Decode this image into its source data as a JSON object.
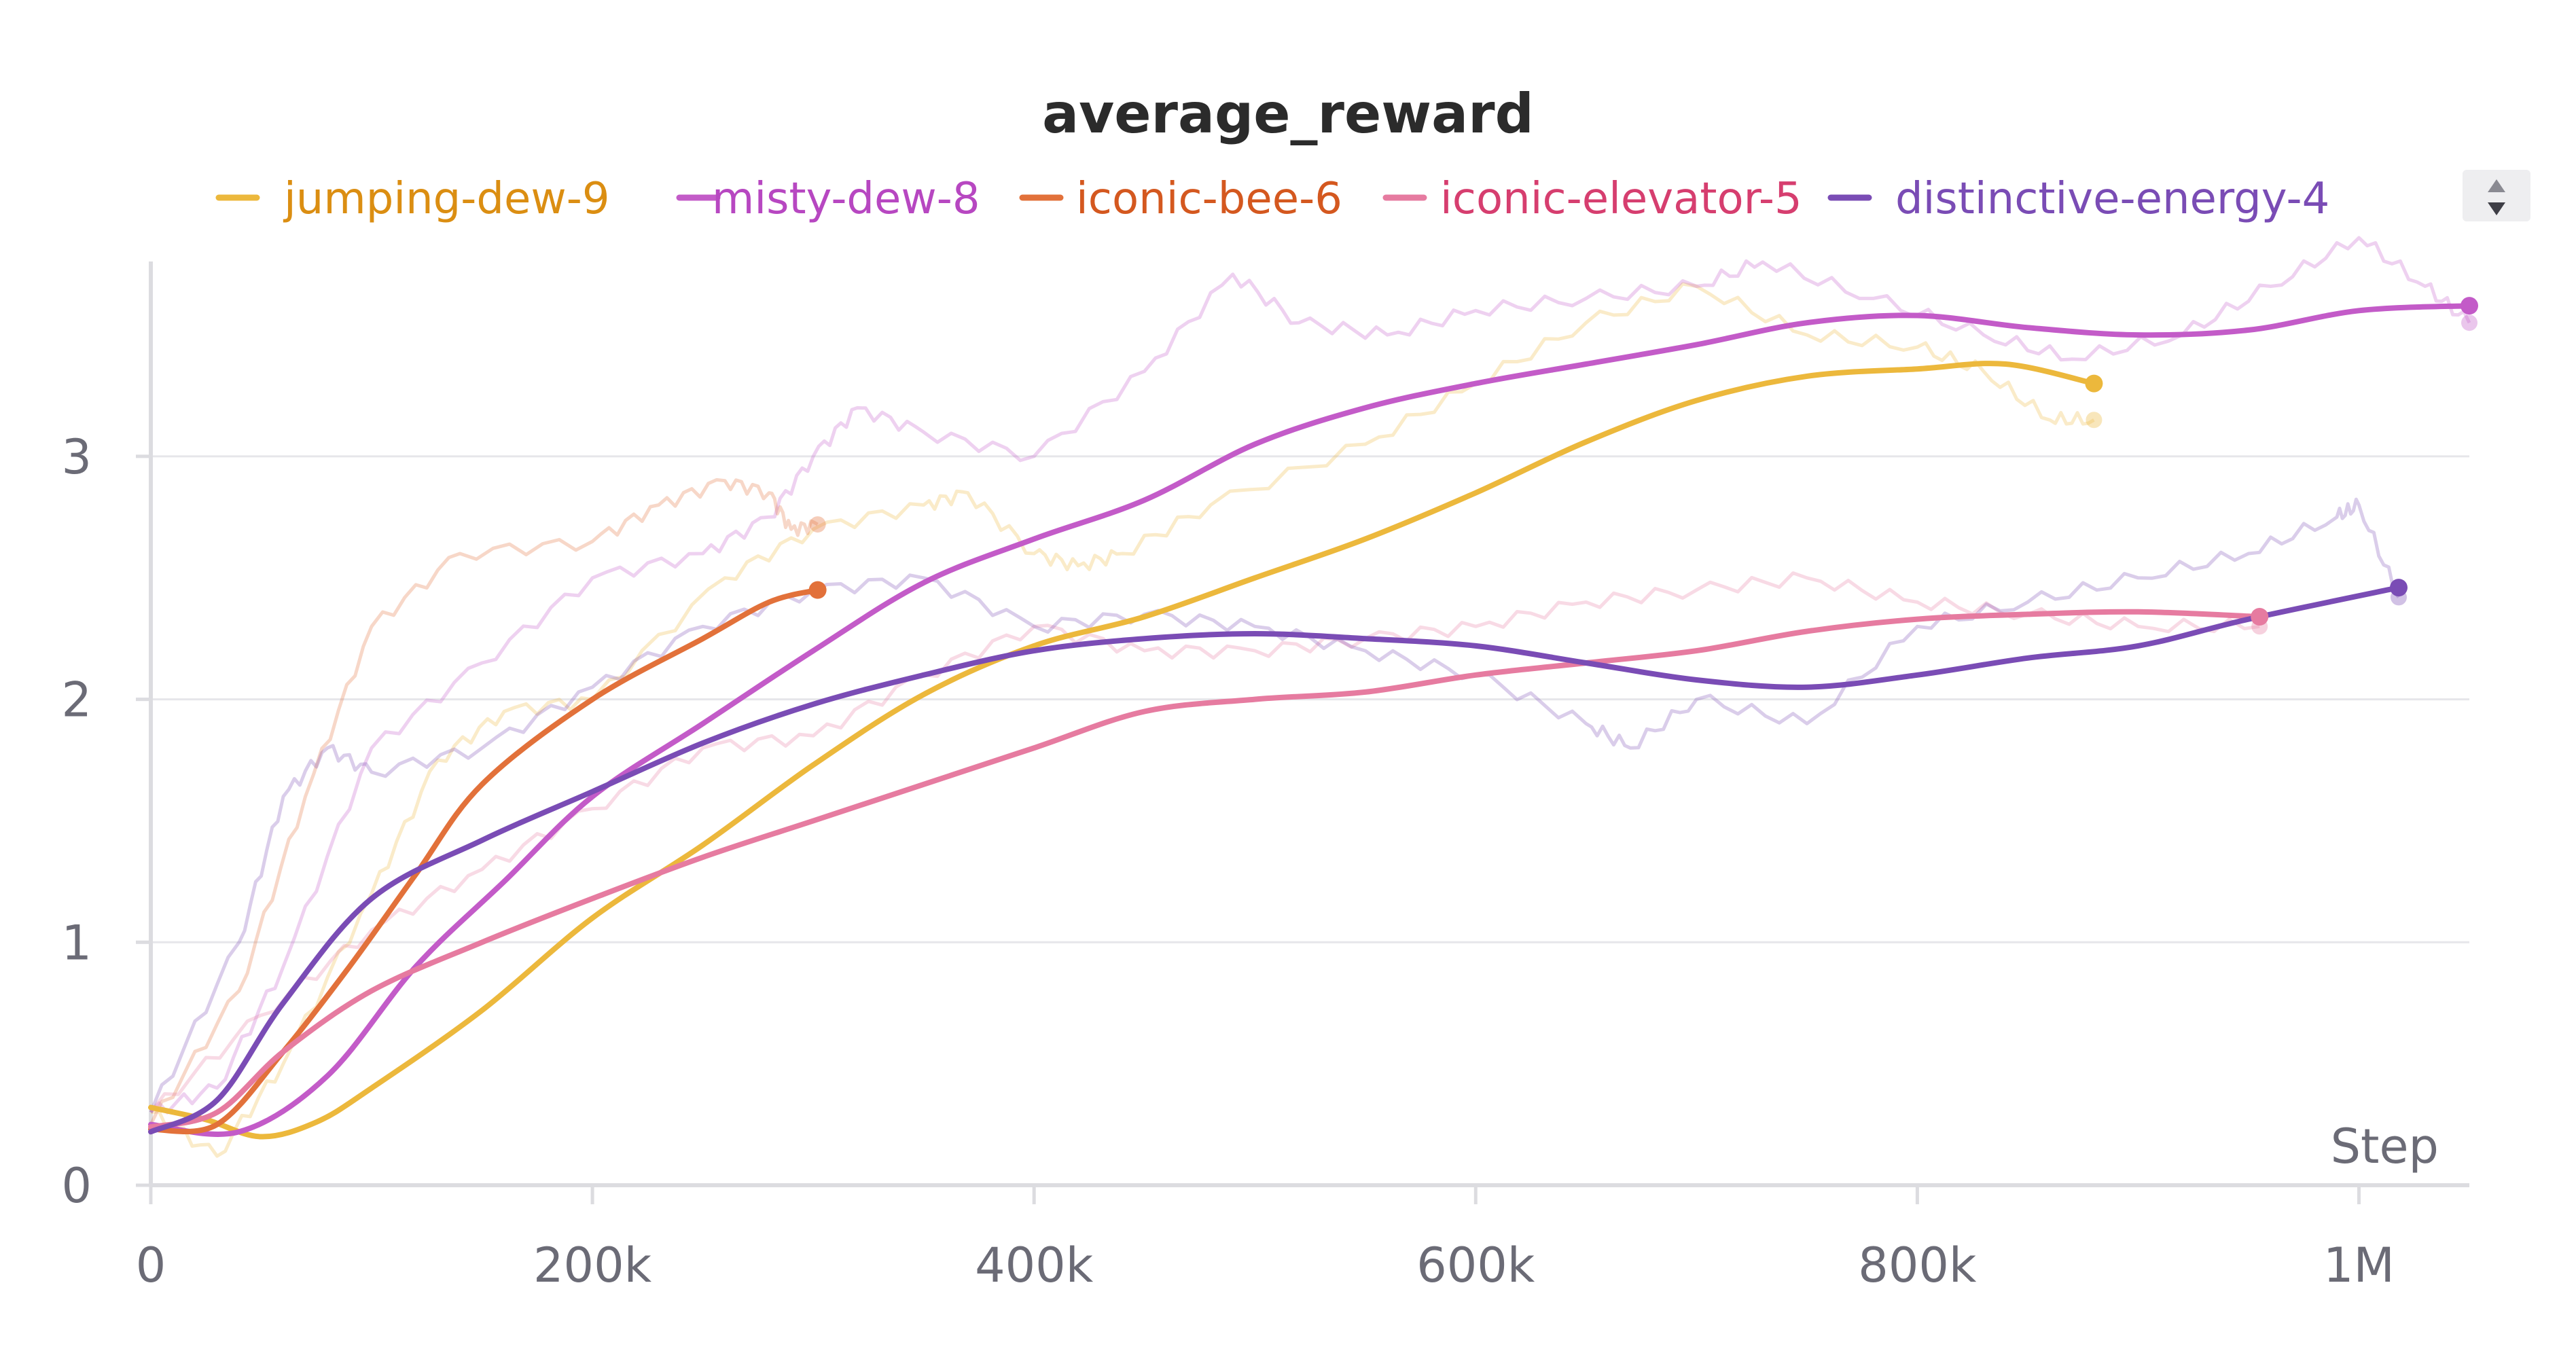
{
  "chart_data": {
    "type": "line",
    "title": "average_reward",
    "xlabel": "Step",
    "ylabel": "",
    "xlim": [
      0,
      1050000
    ],
    "ylim": [
      0,
      3.9
    ],
    "x_ticks": [
      0,
      200000,
      400000,
      600000,
      800000,
      1000000
    ],
    "x_tick_labels": [
      "0",
      "200k",
      "400k",
      "600k",
      "800k",
      "1M"
    ],
    "y_ticks": [
      0,
      1,
      2,
      3
    ],
    "y_tick_labels": [
      "0",
      "1",
      "2",
      "3"
    ],
    "grid": "horizontal",
    "legend_position": "top",
    "series": [
      {
        "name": "jumping-dew-9",
        "color": "#ECB83C",
        "label_color": "#DB8E12",
        "smoothed": [
          [
            0,
            0.32
          ],
          [
            25000,
            0.27
          ],
          [
            50000,
            0.2
          ],
          [
            75000,
            0.26
          ],
          [
            100000,
            0.4
          ],
          [
            150000,
            0.72
          ],
          [
            200000,
            1.1
          ],
          [
            250000,
            1.4
          ],
          [
            300000,
            1.73
          ],
          [
            350000,
            2.02
          ],
          [
            400000,
            2.22
          ],
          [
            450000,
            2.34
          ],
          [
            500000,
            2.5
          ],
          [
            550000,
            2.66
          ],
          [
            600000,
            2.85
          ],
          [
            650000,
            3.06
          ],
          [
            700000,
            3.23
          ],
          [
            750000,
            3.33
          ],
          [
            800000,
            3.36
          ],
          [
            840000,
            3.38
          ],
          [
            880000,
            3.3
          ]
        ],
        "raw": [
          [
            0,
            0.3
          ],
          [
            30000,
            0.12
          ],
          [
            60000,
            0.5
          ],
          [
            100000,
            1.2
          ],
          [
            130000,
            1.75
          ],
          [
            160000,
            1.95
          ],
          [
            200000,
            2.0
          ],
          [
            260000,
            2.5
          ],
          [
            300000,
            2.7
          ],
          [
            350000,
            2.8
          ],
          [
            370000,
            2.85
          ],
          [
            400000,
            2.6
          ],
          [
            420000,
            2.55
          ],
          [
            440000,
            2.6
          ],
          [
            480000,
            2.8
          ],
          [
            550000,
            3.05
          ],
          [
            600000,
            3.3
          ],
          [
            650000,
            3.55
          ],
          [
            700000,
            3.7
          ],
          [
            750000,
            3.5
          ],
          [
            800000,
            3.45
          ],
          [
            830000,
            3.35
          ],
          [
            860000,
            3.15
          ],
          [
            880000,
            3.15
          ]
        ]
      },
      {
        "name": "misty-dew-8",
        "color": "#C35BC8",
        "label_color": "#B747C1",
        "smoothed": [
          [
            0,
            0.25
          ],
          [
            40000,
            0.22
          ],
          [
            80000,
            0.45
          ],
          [
            120000,
            0.9
          ],
          [
            160000,
            1.25
          ],
          [
            200000,
            1.6
          ],
          [
            250000,
            1.9
          ],
          [
            300000,
            2.2
          ],
          [
            350000,
            2.48
          ],
          [
            400000,
            2.66
          ],
          [
            450000,
            2.82
          ],
          [
            500000,
            3.05
          ],
          [
            550000,
            3.2
          ],
          [
            600000,
            3.3
          ],
          [
            650000,
            3.38
          ],
          [
            700000,
            3.46
          ],
          [
            750000,
            3.55
          ],
          [
            800000,
            3.58
          ],
          [
            850000,
            3.53
          ],
          [
            900000,
            3.5
          ],
          [
            950000,
            3.52
          ],
          [
            1000000,
            3.6
          ],
          [
            1050000,
            3.62
          ]
        ],
        "raw": [
          [
            0,
            0.3
          ],
          [
            30000,
            0.4
          ],
          [
            60000,
            0.9
          ],
          [
            100000,
            1.8
          ],
          [
            150000,
            2.15
          ],
          [
            200000,
            2.5
          ],
          [
            250000,
            2.6
          ],
          [
            280000,
            2.75
          ],
          [
            300000,
            3.0
          ],
          [
            320000,
            3.2
          ],
          [
            350000,
            3.1
          ],
          [
            400000,
            3.0
          ],
          [
            450000,
            3.35
          ],
          [
            490000,
            3.75
          ],
          [
            520000,
            3.55
          ],
          [
            560000,
            3.5
          ],
          [
            600000,
            3.6
          ],
          [
            650000,
            3.65
          ],
          [
            700000,
            3.7
          ],
          [
            730000,
            3.8
          ],
          [
            780000,
            3.65
          ],
          [
            830000,
            3.5
          ],
          [
            870000,
            3.4
          ],
          [
            920000,
            3.5
          ],
          [
            960000,
            3.7
          ],
          [
            1000000,
            3.9
          ],
          [
            1030000,
            3.7
          ],
          [
            1050000,
            3.55
          ]
        ]
      },
      {
        "name": "iconic-bee-6",
        "color": "#E2713A",
        "label_color": "#D4581F",
        "smoothed": [
          [
            0,
            0.23
          ],
          [
            30000,
            0.25
          ],
          [
            60000,
            0.55
          ],
          [
            90000,
            0.9
          ],
          [
            120000,
            1.28
          ],
          [
            150000,
            1.65
          ],
          [
            200000,
            2.0
          ],
          [
            250000,
            2.25
          ],
          [
            280000,
            2.4
          ],
          [
            302000,
            2.45
          ]
        ],
        "raw": [
          [
            0,
            0.25
          ],
          [
            40000,
            0.8
          ],
          [
            70000,
            1.6
          ],
          [
            100000,
            2.3
          ],
          [
            140000,
            2.6
          ],
          [
            200000,
            2.65
          ],
          [
            230000,
            2.8
          ],
          [
            260000,
            2.9
          ],
          [
            280000,
            2.85
          ],
          [
            290000,
            2.7
          ],
          [
            302000,
            2.72
          ]
        ]
      },
      {
        "name": "iconic-elevator-5",
        "color": "#E67BA0",
        "label_color": "#D63E6F",
        "smoothed": [
          [
            0,
            0.24
          ],
          [
            30000,
            0.3
          ],
          [
            60000,
            0.55
          ],
          [
            100000,
            0.8
          ],
          [
            150000,
            1.0
          ],
          [
            200000,
            1.18
          ],
          [
            250000,
            1.35
          ],
          [
            300000,
            1.5
          ],
          [
            350000,
            1.65
          ],
          [
            400000,
            1.8
          ],
          [
            450000,
            1.95
          ],
          [
            500000,
            2.0
          ],
          [
            550000,
            2.03
          ],
          [
            600000,
            2.1
          ],
          [
            650000,
            2.15
          ],
          [
            700000,
            2.2
          ],
          [
            750000,
            2.28
          ],
          [
            800000,
            2.33
          ],
          [
            850000,
            2.35
          ],
          [
            900000,
            2.36
          ],
          [
            955000,
            2.34
          ]
        ],
        "raw": [
          [
            0,
            0.3
          ],
          [
            50000,
            0.7
          ],
          [
            100000,
            1.05
          ],
          [
            150000,
            1.3
          ],
          [
            200000,
            1.55
          ],
          [
            250000,
            1.8
          ],
          [
            300000,
            1.85
          ],
          [
            350000,
            2.1
          ],
          [
            400000,
            2.3
          ],
          [
            450000,
            2.2
          ],
          [
            500000,
            2.2
          ],
          [
            550000,
            2.25
          ],
          [
            600000,
            2.3
          ],
          [
            650000,
            2.4
          ],
          [
            700000,
            2.45
          ],
          [
            750000,
            2.5
          ],
          [
            800000,
            2.4
          ],
          [
            850000,
            2.35
          ],
          [
            900000,
            2.3
          ],
          [
            955000,
            2.3
          ]
        ]
      },
      {
        "name": "distinctive-energy-4",
        "color": "#7A4CB5",
        "label_color": "#7A4CB5",
        "smoothed": [
          [
            0,
            0.22
          ],
          [
            30000,
            0.35
          ],
          [
            60000,
            0.75
          ],
          [
            100000,
            1.18
          ],
          [
            150000,
            1.42
          ],
          [
            200000,
            1.62
          ],
          [
            250000,
            1.82
          ],
          [
            300000,
            1.98
          ],
          [
            350000,
            2.1
          ],
          [
            400000,
            2.2
          ],
          [
            450000,
            2.25
          ],
          [
            500000,
            2.27
          ],
          [
            550000,
            2.25
          ],
          [
            600000,
            2.22
          ],
          [
            650000,
            2.15
          ],
          [
            700000,
            2.08
          ],
          [
            750000,
            2.05
          ],
          [
            800000,
            2.1
          ],
          [
            850000,
            2.17
          ],
          [
            900000,
            2.22
          ],
          [
            950000,
            2.33
          ],
          [
            1018000,
            2.46
          ]
        ],
        "raw": [
          [
            0,
            0.3
          ],
          [
            40000,
            1.0
          ],
          [
            60000,
            1.6
          ],
          [
            80000,
            1.8
          ],
          [
            100000,
            1.7
          ],
          [
            150000,
            1.8
          ],
          [
            200000,
            2.05
          ],
          [
            250000,
            2.3
          ],
          [
            300000,
            2.45
          ],
          [
            350000,
            2.5
          ],
          [
            400000,
            2.3
          ],
          [
            450000,
            2.35
          ],
          [
            500000,
            2.3
          ],
          [
            550000,
            2.2
          ],
          [
            600000,
            2.1
          ],
          [
            650000,
            1.9
          ],
          [
            670000,
            1.8
          ],
          [
            700000,
            2.0
          ],
          [
            750000,
            1.9
          ],
          [
            800000,
            2.3
          ],
          [
            850000,
            2.4
          ],
          [
            900000,
            2.5
          ],
          [
            950000,
            2.6
          ],
          [
            990000,
            2.75
          ],
          [
            1000000,
            2.8
          ],
          [
            1018000,
            2.42
          ]
        ]
      }
    ]
  },
  "ui": {
    "sort_icon": "up-down-arrows-icon"
  }
}
